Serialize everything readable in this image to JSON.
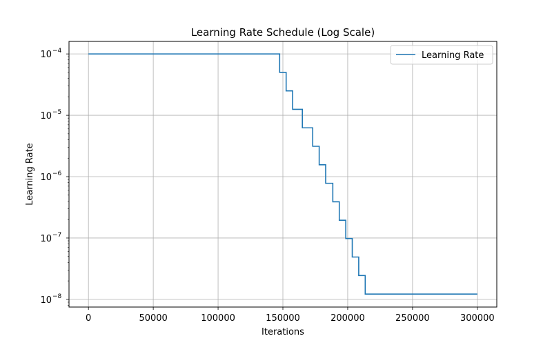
{
  "chart_data": {
    "type": "line",
    "title": "Learning Rate Schedule (Log Scale)",
    "xlabel": "Iterations",
    "ylabel": "Learning Rate",
    "xlim": [
      -15000,
      315000
    ],
    "ylim": [
      7.5e-09,
      0.00016
    ],
    "x_scale": "linear",
    "y_scale": "log",
    "grid": true,
    "legend_position": "top-right",
    "x_ticks": [
      0,
      50000,
      100000,
      150000,
      200000,
      250000,
      300000
    ],
    "x_tick_labels": [
      "0",
      "50000",
      "100000",
      "150000",
      "200000",
      "250000",
      "300000"
    ],
    "y_ticks": [
      {
        "value": 0.0001,
        "base": "10",
        "exponent": "−4"
      },
      {
        "value": 1e-05,
        "base": "10",
        "exponent": "−5"
      },
      {
        "value": 1e-06,
        "base": "10",
        "exponent": "−6"
      },
      {
        "value": 1e-07,
        "base": "10",
        "exponent": "−7"
      },
      {
        "value": 1e-08,
        "base": "10",
        "exponent": "−8"
      }
    ],
    "series": [
      {
        "name": "Learning Rate",
        "color": "#1f77b4",
        "step": "post",
        "points": [
          {
            "x": 0,
            "y": 0.0001
          },
          {
            "x": 147500,
            "y": 5e-05
          },
          {
            "x": 152500,
            "y": 2.5e-05
          },
          {
            "x": 157500,
            "y": 1.25e-05
          },
          {
            "x": 165000,
            "y": 6.25e-06
          },
          {
            "x": 173000,
            "y": 3.125e-06
          },
          {
            "x": 178000,
            "y": 1.5625e-06
          },
          {
            "x": 183000,
            "y": 7.8e-07
          },
          {
            "x": 188500,
            "y": 3.9e-07
          },
          {
            "x": 193500,
            "y": 1.95e-07
          },
          {
            "x": 198500,
            "y": 9.8e-08
          },
          {
            "x": 203500,
            "y": 4.9e-08
          },
          {
            "x": 208500,
            "y": 2.45e-08
          },
          {
            "x": 213500,
            "y": 1.22e-08
          },
          {
            "x": 300000,
            "y": 1.22e-08
          }
        ]
      }
    ]
  }
}
